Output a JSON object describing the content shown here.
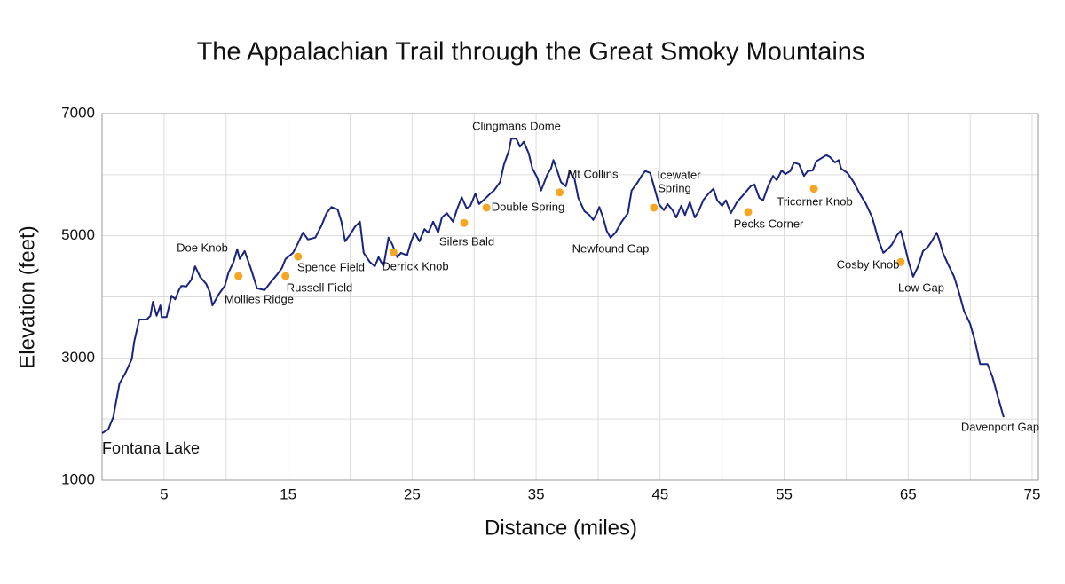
{
  "chart_data": {
    "type": "line",
    "title": "The Appalachian Trail through the Great Smoky Mountains",
    "x_label": "Distance (miles)",
    "y_label": "Elevation (feet)",
    "xlim": [
      0,
      75.5
    ],
    "ylim": [
      1000,
      7000
    ],
    "xticks": [
      5,
      15,
      25,
      35,
      45,
      55,
      65,
      75
    ],
    "yticks": [
      1000,
      3000,
      5000,
      7000
    ],
    "x_minor_grid": [
      10,
      20,
      30,
      40,
      50,
      60,
      70
    ],
    "y_minor_grid": [
      2000,
      4000,
      6000
    ],
    "grid": true,
    "color": "#1a237e",
    "x": [
      0,
      0.5,
      0.9,
      1.4,
      1.9,
      2.4,
      2.6,
      3.0,
      3.6,
      3.9,
      4.1,
      4.4,
      4.7,
      4.8,
      5.2,
      5.6,
      5.9,
      6.2,
      6.4,
      6.8,
      7.2,
      7.5,
      7.9,
      8.4,
      8.7,
      8.9,
      9.4,
      9.9,
      10.2,
      10.6,
      10.9,
      11.1,
      11.5,
      12.0,
      12.5,
      13.1,
      13.6,
      14.1,
      14.5,
      14.8,
      15.4,
      15.8,
      16.2,
      16.6,
      17.2,
      17.7,
      18.1,
      18.5,
      19.0,
      19.3,
      19.6,
      20.0,
      20.4,
      20.8,
      21.1,
      21.6,
      22.0,
      22.3,
      22.7,
      23.1,
      23.4,
      23.8,
      24.1,
      24.6,
      24.9,
      25.2,
      25.6,
      26.0,
      26.3,
      26.7,
      27.1,
      27.4,
      27.8,
      28.3,
      28.6,
      29.0,
      29.4,
      29.7,
      30.1,
      30.4,
      30.9,
      31.3,
      31.6,
      32.1,
      32.4,
      32.8,
      33.0,
      33.4,
      33.7,
      34.0,
      34.4,
      34.7,
      35.1,
      35.4,
      35.9,
      36.2,
      36.4,
      36.7,
      37.0,
      37.4,
      37.7,
      38.1,
      38.4,
      38.9,
      39.3,
      39.6,
      39.9,
      40.1,
      40.4,
      40.7,
      41.0,
      41.4,
      41.9,
      42.4,
      42.7,
      43.2,
      43.5,
      43.8,
      44.2,
      44.6,
      44.9,
      45.3,
      45.6,
      46.0,
      46.3,
      46.7,
      47.0,
      47.4,
      47.8,
      48.1,
      48.5,
      48.9,
      49.3,
      49.6,
      50.0,
      50.3,
      50.7,
      51.2,
      51.8,
      52.3,
      52.6,
      53.0,
      53.3,
      53.7,
      54.1,
      54.4,
      54.8,
      55.1,
      55.5,
      55.8,
      56.2,
      56.6,
      56.9,
      57.3,
      57.6,
      58.0,
      58.4,
      58.7,
      59.1,
      59.4,
      59.6,
      60.1,
      60.6,
      61.1,
      61.6,
      62.1,
      62.6,
      63.0,
      63.4,
      63.7,
      64.1,
      64.4,
      64.7,
      65.0,
      65.4,
      65.8,
      66.2,
      66.6,
      66.9,
      67.3,
      67.5,
      67.8,
      68.2,
      68.7,
      69.1,
      69.5,
      70.0,
      70.4,
      70.8,
      71.4,
      71.8,
      72.2,
      72.7
    ],
    "values": [
      1770,
      1830,
      2030,
      2580,
      2760,
      2980,
      3270,
      3630,
      3630,
      3690,
      3920,
      3690,
      3860,
      3670,
      3670,
      4020,
      3960,
      4110,
      4180,
      4170,
      4280,
      4500,
      4330,
      4210,
      4070,
      3860,
      4040,
      4180,
      4400,
      4570,
      4780,
      4620,
      4750,
      4460,
      4140,
      4110,
      4240,
      4360,
      4470,
      4620,
      4720,
      4880,
      5050,
      4940,
      4970,
      5170,
      5370,
      5470,
      5430,
      5230,
      4910,
      5020,
      5150,
      5230,
      4720,
      4570,
      4500,
      4650,
      4500,
      4970,
      4860,
      4650,
      4720,
      4680,
      4890,
      5050,
      4910,
      5110,
      5050,
      5230,
      5050,
      5300,
      5370,
      5230,
      5420,
      5630,
      5450,
      5490,
      5690,
      5520,
      5610,
      5690,
      5740,
      5880,
      6160,
      6390,
      6590,
      6590,
      6460,
      6540,
      6350,
      6100,
      5950,
      5740,
      6000,
      6100,
      6240,
      6070,
      5880,
      5810,
      6060,
      5930,
      5620,
      5400,
      5340,
      5260,
      5370,
      5470,
      5300,
      5080,
      4970,
      5050,
      5230,
      5370,
      5740,
      5880,
      5980,
      6060,
      6030,
      5740,
      5520,
      5420,
      5520,
      5420,
      5300,
      5490,
      5340,
      5550,
      5300,
      5400,
      5590,
      5690,
      5770,
      5580,
      5490,
      5580,
      5370,
      5550,
      5690,
      5810,
      5840,
      5620,
      5580,
      5810,
      5980,
      5910,
      6070,
      6010,
      6060,
      6200,
      6170,
      5980,
      6060,
      6070,
      6220,
      6270,
      6320,
      6290,
      6200,
      6240,
      6100,
      6030,
      5880,
      5690,
      5520,
      5300,
      4940,
      4720,
      4790,
      4860,
      5010,
      5080,
      4860,
      4600,
      4330,
      4500,
      4750,
      4820,
      4910,
      5050,
      4940,
      4720,
      4540,
      4330,
      4070,
      3770,
      3560,
      3270,
      2900,
      2900,
      2690,
      2390,
      2030
    ],
    "points": {
      "color": "#f5a623",
      "x": [
        11.0,
        14.8,
        15.8,
        23.5,
        29.2,
        31.0,
        36.9,
        44.5,
        52.1,
        57.4,
        64.4
      ],
      "values": [
        4340,
        4340,
        4660,
        4730,
        5210,
        5460,
        5710,
        5460,
        5390,
        5770,
        4570
      ]
    },
    "annotations": [
      "Clingmans Dome",
      "Mt Collins",
      "Icewater",
      "Spring",
      "Doe Knob",
      "Mollies Ridge",
      "Spence Field",
      "Russell Field",
      "Derrick Knob",
      "Silers Bald",
      "Double Spring",
      "Newfound Gap",
      "Pecks Corner",
      "Tricorner Knob",
      "Cosby Knob",
      "Low Gap",
      "Davenport Gap",
      "Fontana Lake"
    ]
  }
}
